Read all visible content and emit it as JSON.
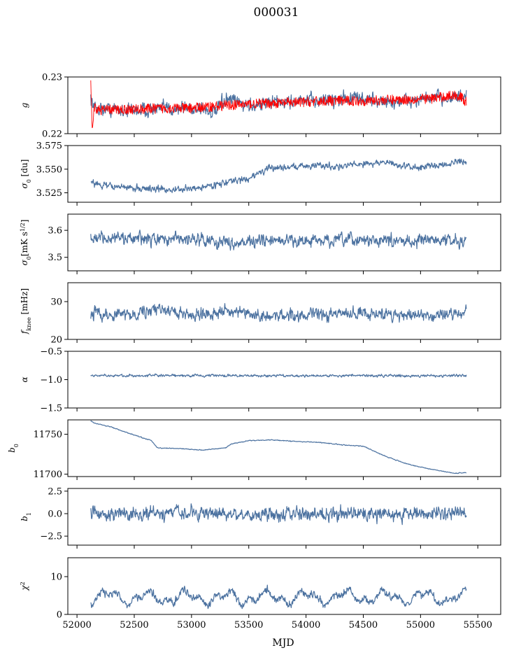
{
  "figure": {
    "title": "000031",
    "xlabel": "MJD"
  },
  "colors": {
    "series": "#4c72a0",
    "overlay": "#ff0000",
    "axis": "#000000"
  },
  "chart_data": [
    {
      "type": "line",
      "ylabel": "g",
      "ylabel_sub": "",
      "xlim": [
        51920,
        55700
      ],
      "ylim": [
        0.22,
        0.23
      ],
      "xticks": [
        52000,
        52500,
        53000,
        53500,
        54000,
        54500,
        55000,
        55500
      ],
      "yticks": [
        0.22,
        0.23
      ],
      "ytick_labels": [
        "0.22",
        "0.23"
      ],
      "series": [
        {
          "color": "#4c72a0",
          "noise": 0.0012,
          "x": [
            52120,
            52150,
            52300,
            52500,
            52700,
            52900,
            53100,
            53200,
            53300,
            53500,
            53700,
            53900,
            54100,
            54300,
            54500,
            54700,
            54900,
            55100,
            55300,
            55400
          ],
          "y": [
            0.2265,
            0.2245,
            0.2243,
            0.2242,
            0.2243,
            0.2245,
            0.2245,
            0.2235,
            0.226,
            0.225,
            0.2255,
            0.2257,
            0.2258,
            0.2262,
            0.2262,
            0.2255,
            0.2258,
            0.2262,
            0.2265,
            0.2262
          ]
        },
        {
          "color": "#ff0000",
          "band": 0.0009,
          "x": [
            52120,
            52125,
            52135,
            52150,
            52200,
            52500,
            52800,
            53000,
            53300,
            53600,
            53900,
            54200,
            54500,
            54800,
            55100,
            55300,
            55350,
            55400
          ],
          "y": [
            0.2297,
            0.2255,
            0.22,
            0.2245,
            0.2242,
            0.2243,
            0.2245,
            0.2245,
            0.225,
            0.2253,
            0.2255,
            0.2258,
            0.2258,
            0.226,
            0.2262,
            0.2268,
            0.2265,
            0.2255
          ]
        }
      ]
    },
    {
      "type": "line",
      "ylabel": "σ",
      "ylabel_sub": "0",
      "ylabel_suffix": " [du]",
      "xlim": [
        51920,
        55700
      ],
      "ylim": [
        3.515,
        3.575
      ],
      "yticks": [
        3.525,
        3.55,
        3.575
      ],
      "ytick_labels": [
        "3.525",
        "3.550",
        "3.575"
      ],
      "series": [
        {
          "color": "#4c72a0",
          "noise": 0.0035,
          "x": [
            52120,
            52150,
            52300,
            52500,
            52700,
            52900,
            53100,
            53300,
            53500,
            53600,
            53700,
            53900,
            54100,
            54300,
            54500,
            54700,
            54900,
            55100,
            55300,
            55400
          ],
          "y": [
            3.54,
            3.534,
            3.532,
            3.53,
            3.529,
            3.528,
            3.531,
            3.536,
            3.54,
            3.547,
            3.551,
            3.553,
            3.554,
            3.553,
            3.556,
            3.557,
            3.552,
            3.553,
            3.558,
            3.556
          ]
        }
      ]
    },
    {
      "type": "line",
      "ylabel": "σ",
      "ylabel_sub": "0",
      "ylabel_suffix": "[mK s",
      "ylabel_sup": "1/2",
      "ylabel_end": "]",
      "xlim": [
        51920,
        55700
      ],
      "ylim": [
        3.45,
        3.66
      ],
      "yticks": [
        3.5,
        3.6
      ],
      "ytick_labels": [
        "3.5",
        "3.6"
      ],
      "series": [
        {
          "color": "#4c72a0",
          "noise": 0.022,
          "x": [
            52120,
            52400,
            52700,
            53000,
            53300,
            53600,
            53900,
            54200,
            54500,
            54800,
            55100,
            55400
          ],
          "y": [
            3.575,
            3.57,
            3.565,
            3.57,
            3.555,
            3.56,
            3.562,
            3.56,
            3.565,
            3.56,
            3.565,
            3.56
          ]
        }
      ]
    },
    {
      "type": "line",
      "ylabel": "f",
      "ylabel_sub": "knee",
      "ylabel_suffix": " [mHz]",
      "xlim": [
        51920,
        55700
      ],
      "ylim": [
        20,
        35
      ],
      "yticks": [
        20,
        30
      ],
      "ytick_labels": [
        "20",
        "30"
      ],
      "series": [
        {
          "color": "#4c72a0",
          "noise": 1.6,
          "x": [
            52120,
            52400,
            52700,
            53000,
            53300,
            53600,
            53900,
            54200,
            54500,
            54800,
            55100,
            55400
          ],
          "y": [
            27,
            26.5,
            28,
            26.5,
            27.5,
            26,
            26.5,
            26.5,
            27,
            26.5,
            26.5,
            27
          ]
        }
      ]
    },
    {
      "type": "line",
      "ylabel": "α",
      "ylabel_sub": "",
      "xlim": [
        51920,
        55700
      ],
      "ylim": [
        -1.5,
        -0.5
      ],
      "yticks": [
        -1.5,
        -1.0,
        -0.5
      ],
      "ytick_labels": [
        "−1.5",
        "−1.0",
        "−0.5"
      ],
      "series": [
        {
          "color": "#4c72a0",
          "noise": 0.022,
          "x": [
            52120,
            53000,
            54000,
            55000,
            55400
          ],
          "y": [
            -0.93,
            -0.93,
            -0.93,
            -0.93,
            -0.93
          ]
        }
      ]
    },
    {
      "type": "line",
      "ylabel": "b",
      "ylabel_sub": "0",
      "xlim": [
        51920,
        55700
      ],
      "ylim": [
        11697,
        11768
      ],
      "yticks": [
        11700,
        11750
      ],
      "ytick_labels": [
        "11700",
        "11750"
      ],
      "series": [
        {
          "color": "#4c72a0",
          "noise": 0.5,
          "x": [
            52120,
            52150,
            52300,
            52500,
            52650,
            52700,
            52900,
            53100,
            53300,
            53350,
            53500,
            53700,
            53900,
            54100,
            54300,
            54500,
            54700,
            54900,
            55100,
            55300,
            55400
          ],
          "y": [
            11767,
            11764,
            11759,
            11749,
            11742,
            11733,
            11732,
            11730,
            11733,
            11738,
            11742,
            11743,
            11741,
            11740,
            11737,
            11735,
            11722,
            11712,
            11706,
            11701,
            11702
          ]
        }
      ]
    },
    {
      "type": "line",
      "ylabel": "b",
      "ylabel_sub": "1",
      "xlim": [
        51920,
        55700
      ],
      "ylim": [
        -3.5,
        2.8
      ],
      "yticks": [
        -2.5,
        0,
        2.5
      ],
      "ytick_labels": [
        "−2.5",
        "0.0",
        "2.5"
      ],
      "series": [
        {
          "color": "#4c72a0",
          "noise": 0.75,
          "x": [
            52120,
            53000,
            54000,
            55000,
            55400
          ],
          "y": [
            0,
            0,
            0,
            0,
            0
          ]
        }
      ]
    },
    {
      "type": "line",
      "ylabel": "χ",
      "ylabel_sup": "2",
      "ylabel_sub": "",
      "xlim": [
        51920,
        55700
      ],
      "ylim": [
        0,
        15
      ],
      "yticks": [
        0,
        10
      ],
      "ytick_labels": [
        "0",
        "10"
      ],
      "series": [
        {
          "color": "#4c72a0",
          "noise": 1.0,
          "wave": 1.4,
          "x": [
            52120,
            53000,
            54000,
            55000,
            55400
          ],
          "y": [
            4.5,
            4.5,
            4.5,
            4.5,
            4.5
          ]
        }
      ]
    }
  ]
}
